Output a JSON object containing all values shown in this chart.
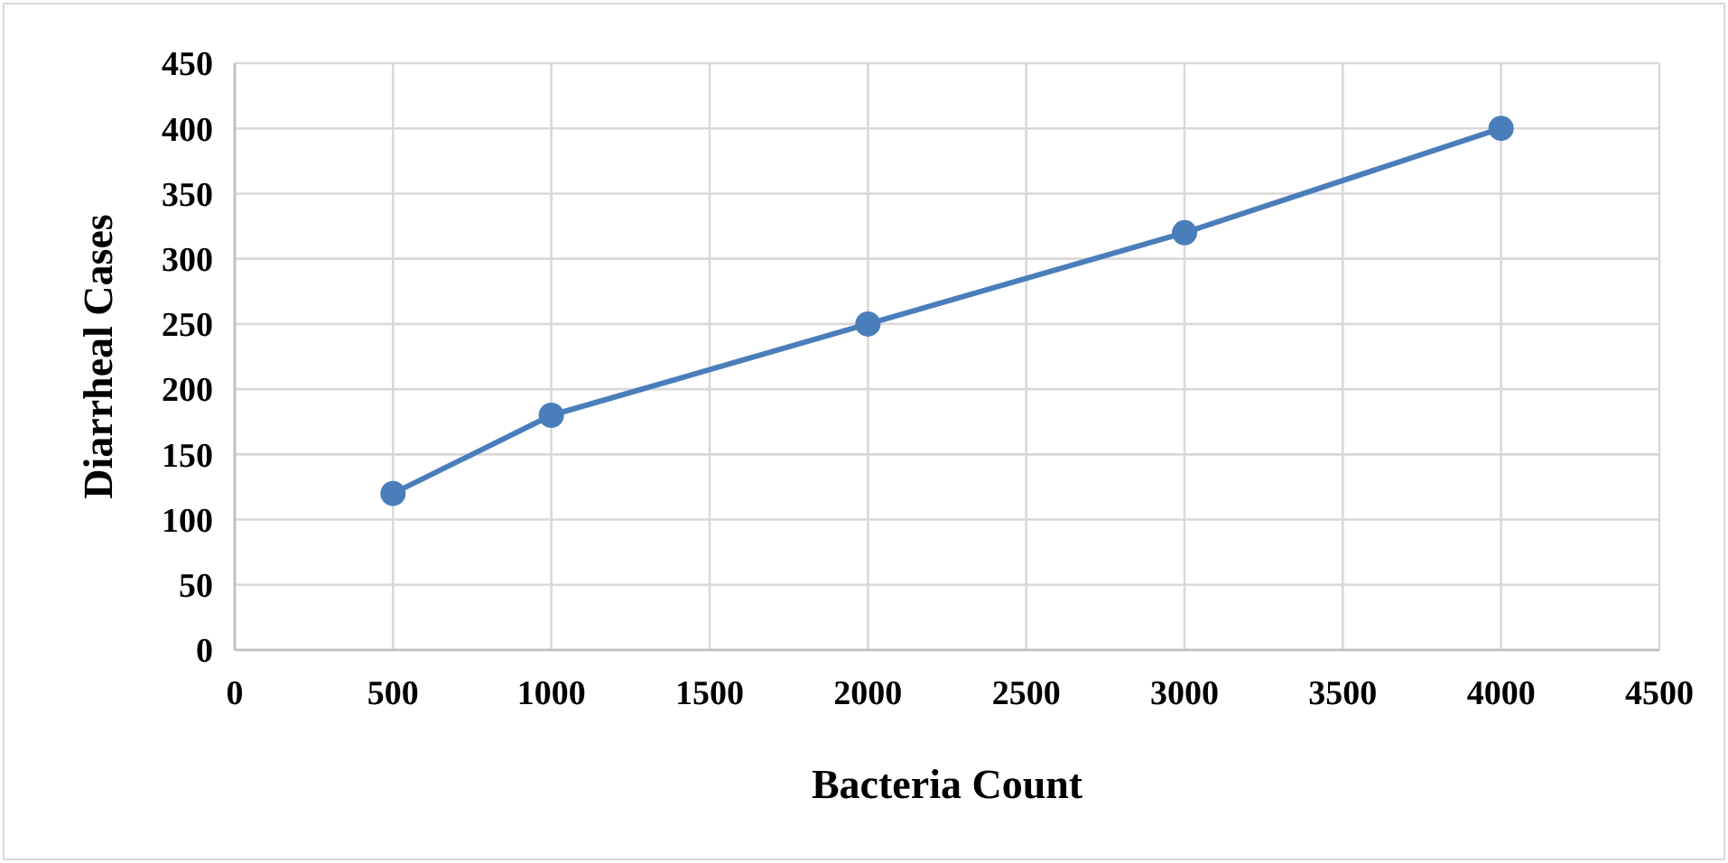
{
  "chart_data": {
    "type": "line",
    "xlabel": "Bacteria Count",
    "ylabel": "Diarrheal Cases",
    "x": [
      500,
      1000,
      2000,
      3000,
      4000
    ],
    "series": [
      {
        "color": "#4a7ebb",
        "values": [
          120,
          180,
          250,
          320,
          400
        ]
      }
    ],
    "xlim": [
      0,
      4500
    ],
    "xticks": [
      0,
      500,
      1000,
      1500,
      2000,
      2500,
      3000,
      3500,
      4000,
      4500
    ],
    "ylim": [
      0,
      450
    ],
    "yticks": [
      0,
      50,
      100,
      150,
      200,
      250,
      300,
      350,
      400,
      450
    ],
    "grid": true,
    "marker": "circle",
    "line_style": "solid"
  }
}
